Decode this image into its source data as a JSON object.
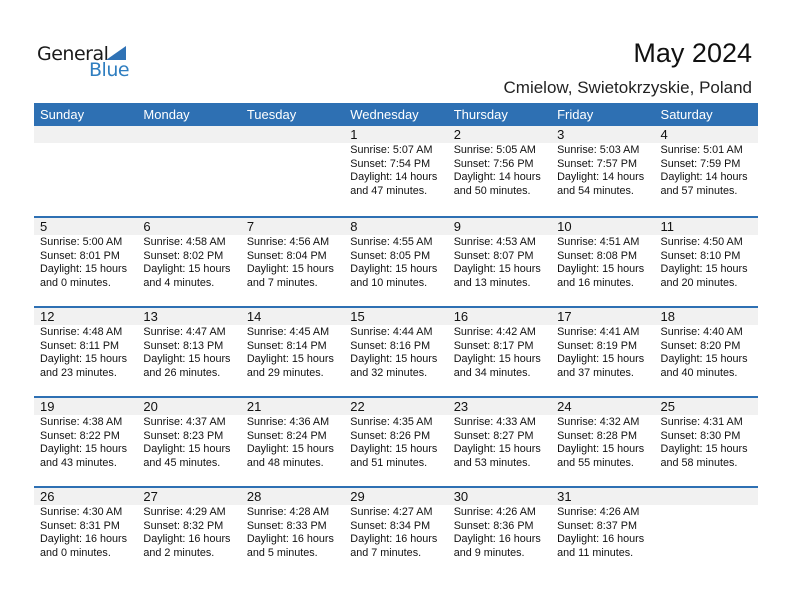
{
  "logo": {
    "line1": "General",
    "line2": "Blue"
  },
  "title": "May 2024",
  "location": "Cmielow, Swietokrzyskie, Poland",
  "colors": {
    "header": "#2e70b3",
    "strip": "#f1f1f1"
  },
  "days": [
    "Sunday",
    "Monday",
    "Tuesday",
    "Wednesday",
    "Thursday",
    "Friday",
    "Saturday"
  ],
  "weeks": [
    [
      {},
      {},
      {},
      {
        "d": "1",
        "sr": "Sunrise: 5:07 AM",
        "ss": "Sunset: 7:54 PM",
        "dl": "Daylight: 14 hours",
        "dm": "and 47 minutes."
      },
      {
        "d": "2",
        "sr": "Sunrise: 5:05 AM",
        "ss": "Sunset: 7:56 PM",
        "dl": "Daylight: 14 hours",
        "dm": "and 50 minutes."
      },
      {
        "d": "3",
        "sr": "Sunrise: 5:03 AM",
        "ss": "Sunset: 7:57 PM",
        "dl": "Daylight: 14 hours",
        "dm": "and 54 minutes."
      },
      {
        "d": "4",
        "sr": "Sunrise: 5:01 AM",
        "ss": "Sunset: 7:59 PM",
        "dl": "Daylight: 14 hours",
        "dm": "and 57 minutes."
      }
    ],
    [
      {
        "d": "5",
        "sr": "Sunrise: 5:00 AM",
        "ss": "Sunset: 8:01 PM",
        "dl": "Daylight: 15 hours",
        "dm": "and 0 minutes."
      },
      {
        "d": "6",
        "sr": "Sunrise: 4:58 AM",
        "ss": "Sunset: 8:02 PM",
        "dl": "Daylight: 15 hours",
        "dm": "and 4 minutes."
      },
      {
        "d": "7",
        "sr": "Sunrise: 4:56 AM",
        "ss": "Sunset: 8:04 PM",
        "dl": "Daylight: 15 hours",
        "dm": "and 7 minutes."
      },
      {
        "d": "8",
        "sr": "Sunrise: 4:55 AM",
        "ss": "Sunset: 8:05 PM",
        "dl": "Daylight: 15 hours",
        "dm": "and 10 minutes."
      },
      {
        "d": "9",
        "sr": "Sunrise: 4:53 AM",
        "ss": "Sunset: 8:07 PM",
        "dl": "Daylight: 15 hours",
        "dm": "and 13 minutes."
      },
      {
        "d": "10",
        "sr": "Sunrise: 4:51 AM",
        "ss": "Sunset: 8:08 PM",
        "dl": "Daylight: 15 hours",
        "dm": "and 16 minutes."
      },
      {
        "d": "11",
        "sr": "Sunrise: 4:50 AM",
        "ss": "Sunset: 8:10 PM",
        "dl": "Daylight: 15 hours",
        "dm": "and 20 minutes."
      }
    ],
    [
      {
        "d": "12",
        "sr": "Sunrise: 4:48 AM",
        "ss": "Sunset: 8:11 PM",
        "dl": "Daylight: 15 hours",
        "dm": "and 23 minutes."
      },
      {
        "d": "13",
        "sr": "Sunrise: 4:47 AM",
        "ss": "Sunset: 8:13 PM",
        "dl": "Daylight: 15 hours",
        "dm": "and 26 minutes."
      },
      {
        "d": "14",
        "sr": "Sunrise: 4:45 AM",
        "ss": "Sunset: 8:14 PM",
        "dl": "Daylight: 15 hours",
        "dm": "and 29 minutes."
      },
      {
        "d": "15",
        "sr": "Sunrise: 4:44 AM",
        "ss": "Sunset: 8:16 PM",
        "dl": "Daylight: 15 hours",
        "dm": "and 32 minutes."
      },
      {
        "d": "16",
        "sr": "Sunrise: 4:42 AM",
        "ss": "Sunset: 8:17 PM",
        "dl": "Daylight: 15 hours",
        "dm": "and 34 minutes."
      },
      {
        "d": "17",
        "sr": "Sunrise: 4:41 AM",
        "ss": "Sunset: 8:19 PM",
        "dl": "Daylight: 15 hours",
        "dm": "and 37 minutes."
      },
      {
        "d": "18",
        "sr": "Sunrise: 4:40 AM",
        "ss": "Sunset: 8:20 PM",
        "dl": "Daylight: 15 hours",
        "dm": "and 40 minutes."
      }
    ],
    [
      {
        "d": "19",
        "sr": "Sunrise: 4:38 AM",
        "ss": "Sunset: 8:22 PM",
        "dl": "Daylight: 15 hours",
        "dm": "and 43 minutes."
      },
      {
        "d": "20",
        "sr": "Sunrise: 4:37 AM",
        "ss": "Sunset: 8:23 PM",
        "dl": "Daylight: 15 hours",
        "dm": "and 45 minutes."
      },
      {
        "d": "21",
        "sr": "Sunrise: 4:36 AM",
        "ss": "Sunset: 8:24 PM",
        "dl": "Daylight: 15 hours",
        "dm": "and 48 minutes."
      },
      {
        "d": "22",
        "sr": "Sunrise: 4:35 AM",
        "ss": "Sunset: 8:26 PM",
        "dl": "Daylight: 15 hours",
        "dm": "and 51 minutes."
      },
      {
        "d": "23",
        "sr": "Sunrise: 4:33 AM",
        "ss": "Sunset: 8:27 PM",
        "dl": "Daylight: 15 hours",
        "dm": "and 53 minutes."
      },
      {
        "d": "24",
        "sr": "Sunrise: 4:32 AM",
        "ss": "Sunset: 8:28 PM",
        "dl": "Daylight: 15 hours",
        "dm": "and 55 minutes."
      },
      {
        "d": "25",
        "sr": "Sunrise: 4:31 AM",
        "ss": "Sunset: 8:30 PM",
        "dl": "Daylight: 15 hours",
        "dm": "and 58 minutes."
      }
    ],
    [
      {
        "d": "26",
        "sr": "Sunrise: 4:30 AM",
        "ss": "Sunset: 8:31 PM",
        "dl": "Daylight: 16 hours",
        "dm": "and 0 minutes."
      },
      {
        "d": "27",
        "sr": "Sunrise: 4:29 AM",
        "ss": "Sunset: 8:32 PM",
        "dl": "Daylight: 16 hours",
        "dm": "and 2 minutes."
      },
      {
        "d": "28",
        "sr": "Sunrise: 4:28 AM",
        "ss": "Sunset: 8:33 PM",
        "dl": "Daylight: 16 hours",
        "dm": "and 5 minutes."
      },
      {
        "d": "29",
        "sr": "Sunrise: 4:27 AM",
        "ss": "Sunset: 8:34 PM",
        "dl": "Daylight: 16 hours",
        "dm": "and 7 minutes."
      },
      {
        "d": "30",
        "sr": "Sunrise: 4:26 AM",
        "ss": "Sunset: 8:36 PM",
        "dl": "Daylight: 16 hours",
        "dm": "and 9 minutes."
      },
      {
        "d": "31",
        "sr": "Sunrise: 4:26 AM",
        "ss": "Sunset: 8:37 PM",
        "dl": "Daylight: 16 hours",
        "dm": "and 11 minutes."
      },
      {}
    ]
  ]
}
